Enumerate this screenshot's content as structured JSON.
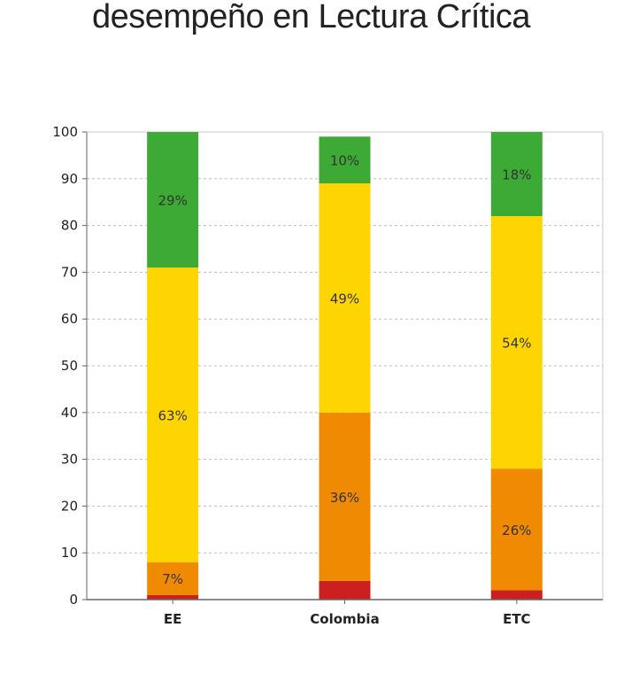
{
  "chart_data": {
    "type": "bar",
    "stacked": true,
    "title": "desempeño en Lectura Crítica",
    "categories": [
      "EE",
      "Colombia",
      "ETC"
    ],
    "ylim": [
      0,
      100
    ],
    "yticks": [
      0,
      10,
      20,
      30,
      40,
      50,
      60,
      70,
      80,
      90,
      100
    ],
    "grid": true,
    "series": [
      {
        "color": "#cc1f1f",
        "values": [
          1,
          4,
          2
        ],
        "labels": [
          "",
          "",
          ""
        ]
      },
      {
        "color": "#f08a00",
        "values": [
          7,
          36,
          26
        ],
        "labels": [
          "7%",
          "36%",
          "26%"
        ]
      },
      {
        "color": "#ffd500",
        "values": [
          63,
          49,
          54
        ],
        "labels": [
          "63%",
          "49%",
          "54%"
        ]
      },
      {
        "color": "#3daa35",
        "values": [
          29,
          10,
          18
        ],
        "labels": [
          "29%",
          "10%",
          "18%"
        ]
      }
    ]
  }
}
